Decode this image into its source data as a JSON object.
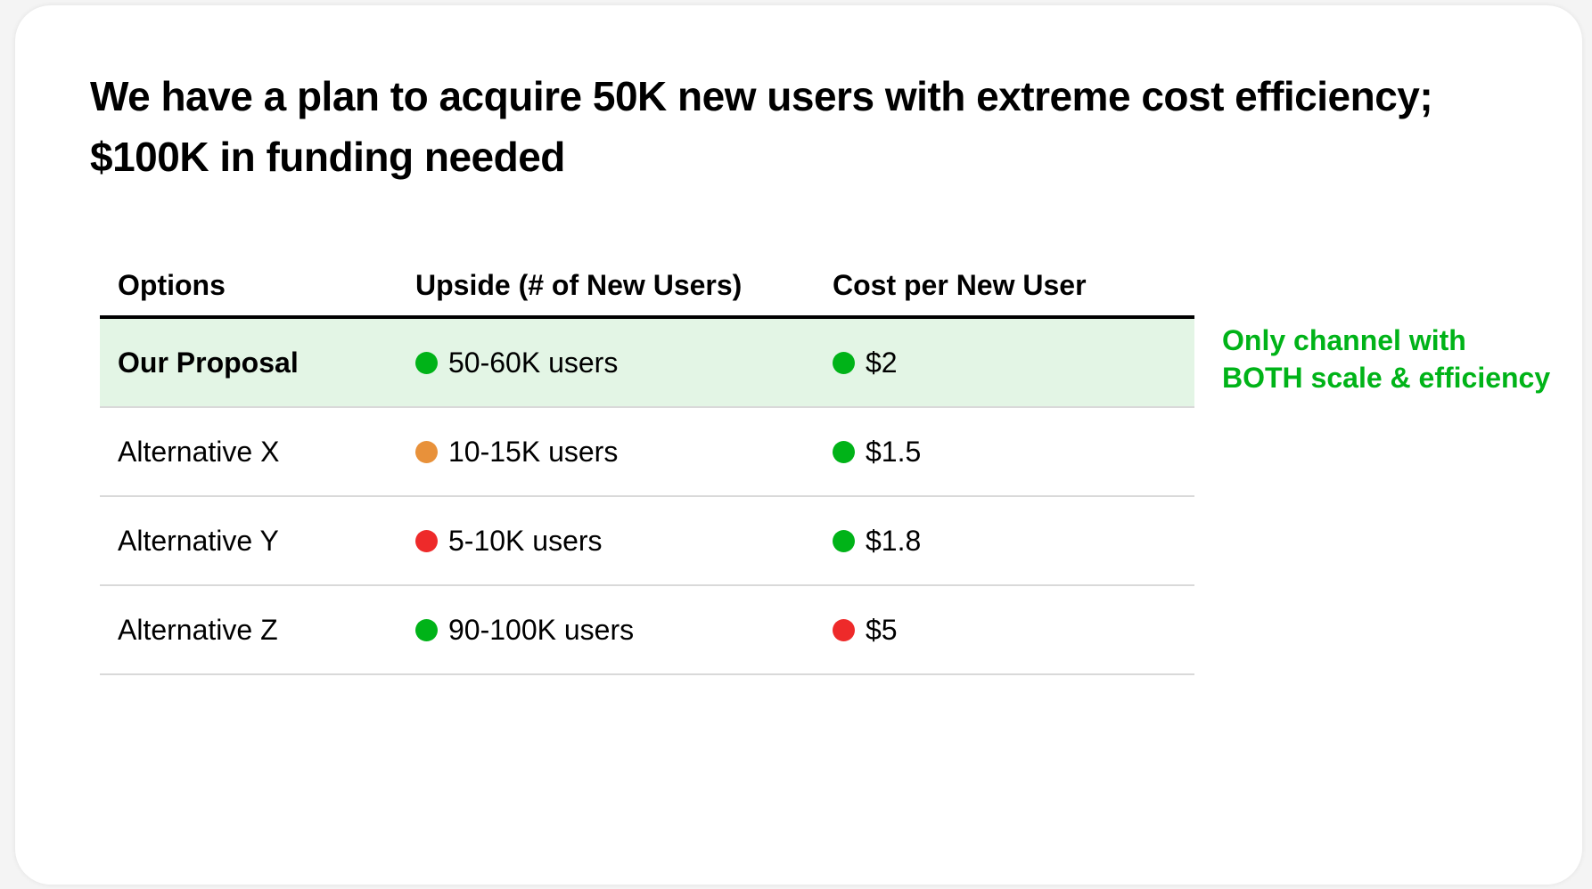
{
  "title": "We have a plan to acquire 50K new users with extreme cost efficiency; $100K in funding needed",
  "colors": {
    "green": "#00b318",
    "orange": "#e8913a",
    "red": "#ee2a2a",
    "highlight": "#e3f5e5"
  },
  "table": {
    "headers": [
      "Options",
      "Upside (# of New Users)",
      "Cost per New User"
    ],
    "rows": [
      {
        "option": "Our Proposal",
        "upside": "50-60K users",
        "upside_status": "green",
        "cost": "$2",
        "cost_status": "green",
        "highlighted": true
      },
      {
        "option": "Alternative X",
        "upside": "10-15K users",
        "upside_status": "orange",
        "cost": "$1.5",
        "cost_status": "green"
      },
      {
        "option": "Alternative Y",
        "upside": "5-10K users",
        "upside_status": "red",
        "cost": "$1.8",
        "cost_status": "green"
      },
      {
        "option": "Alternative Z",
        "upside": "90-100K users",
        "upside_status": "green",
        "cost": "$5",
        "cost_status": "red"
      }
    ]
  },
  "note": {
    "line1": "Only channel with",
    "line2": "BOTH scale & efficiency"
  }
}
